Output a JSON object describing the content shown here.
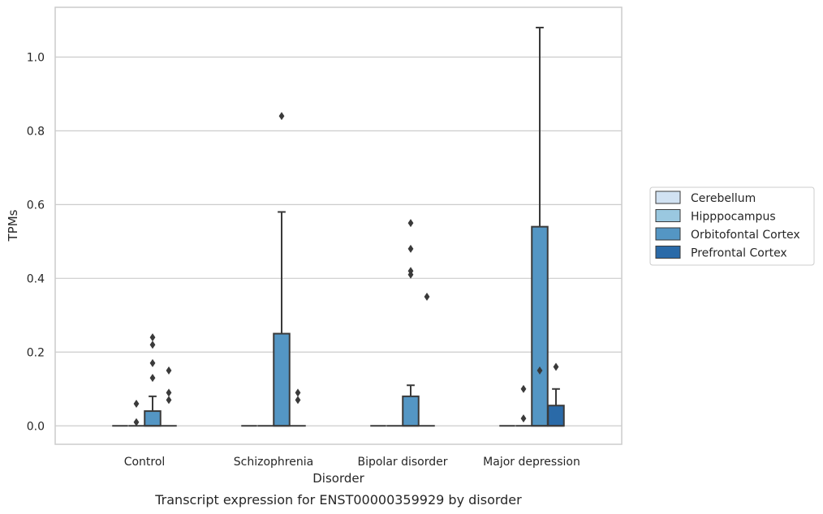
{
  "chart_data": {
    "type": "box",
    "xlabel": "Disorder",
    "ylabel": "TPMs",
    "caption": "Transcript expression for ENST00000359929 by disorder",
    "categories": [
      "Control",
      "Schizophrenia",
      "Bipolar disorder",
      "Major depression"
    ],
    "ylim": [
      -0.05,
      1.135
    ],
    "yticks": [
      0.0,
      0.2,
      0.4,
      0.6,
      0.8,
      1.0
    ],
    "ytick_labels": [
      "0.0",
      "0.2",
      "0.4",
      "0.6",
      "0.8",
      "1.0"
    ],
    "grid": true,
    "legend_position": "right",
    "series": [
      {
        "name": "Cerebellum",
        "color": "#d1e2f2",
        "boxes": [
          {
            "category": "Control",
            "q1": 0,
            "median": 0,
            "q3": 0,
            "whisker_low": 0,
            "whisker_high": 0,
            "fliers": []
          },
          {
            "category": "Schizophrenia",
            "q1": 0,
            "median": 0,
            "q3": 0,
            "whisker_low": 0,
            "whisker_high": 0,
            "fliers": []
          },
          {
            "category": "Bipolar disorder",
            "q1": 0,
            "median": 0,
            "q3": 0,
            "whisker_low": 0,
            "whisker_high": 0,
            "fliers": []
          },
          {
            "category": "Major depression",
            "q1": 0,
            "median": 0,
            "q3": 0,
            "whisker_low": 0,
            "whisker_high": 0,
            "fliers": []
          }
        ]
      },
      {
        "name": "Hipppocampus",
        "color": "#9ac8e0",
        "boxes": [
          {
            "category": "Control",
            "q1": 0,
            "median": 0,
            "q3": 0,
            "whisker_low": 0,
            "whisker_high": 0,
            "fliers": [
              0.06,
              0.01
            ]
          },
          {
            "category": "Schizophrenia",
            "q1": 0,
            "median": 0,
            "q3": 0,
            "whisker_low": 0,
            "whisker_high": 0,
            "fliers": []
          },
          {
            "category": "Bipolar disorder",
            "q1": 0,
            "median": 0,
            "q3": 0,
            "whisker_low": 0,
            "whisker_high": 0,
            "fliers": []
          },
          {
            "category": "Major depression",
            "q1": 0,
            "median": 0,
            "q3": 0,
            "whisker_low": 0,
            "whisker_high": 0,
            "fliers": [
              0.1,
              0.02
            ]
          }
        ]
      },
      {
        "name": "Orbitofontal Cortex",
        "color": "#5496c4",
        "boxes": [
          {
            "category": "Control",
            "q1": 0,
            "median": 0,
            "q3": 0.04,
            "whisker_low": 0,
            "whisker_high": 0.08,
            "fliers": [
              0.24,
              0.22,
              0.17,
              0.13
            ]
          },
          {
            "category": "Schizophrenia",
            "q1": 0,
            "median": 0,
            "q3": 0.25,
            "whisker_low": 0,
            "whisker_high": 0.58,
            "fliers": [
              0.84
            ]
          },
          {
            "category": "Bipolar disorder",
            "q1": 0,
            "median": 0,
            "q3": 0.08,
            "whisker_low": 0,
            "whisker_high": 0.11,
            "fliers": [
              0.55,
              0.48,
              0.42,
              0.41
            ]
          },
          {
            "category": "Major depression",
            "q1": 0,
            "median": 0,
            "q3": 0.54,
            "whisker_low": 0,
            "whisker_high": 1.08,
            "fliers": [
              0.15
            ]
          }
        ]
      },
      {
        "name": "Prefrontal Cortex",
        "color": "#2a6aa8",
        "boxes": [
          {
            "category": "Control",
            "q1": 0,
            "median": 0,
            "q3": 0,
            "whisker_low": 0,
            "whisker_high": 0,
            "fliers": [
              0.15,
              0.09,
              0.07
            ]
          },
          {
            "category": "Schizophrenia",
            "q1": 0,
            "median": 0,
            "q3": 0,
            "whisker_low": 0,
            "whisker_high": 0,
            "fliers": [
              0.09,
              0.07
            ]
          },
          {
            "category": "Bipolar disorder",
            "q1": 0,
            "median": 0,
            "q3": 0,
            "whisker_low": 0,
            "whisker_high": 0,
            "fliers": [
              0.35
            ]
          },
          {
            "category": "Major depression",
            "q1": 0,
            "median": 0,
            "q3": 0.055,
            "whisker_low": 0,
            "whisker_high": 0.1,
            "fliers": [
              0.16
            ]
          }
        ]
      }
    ]
  }
}
